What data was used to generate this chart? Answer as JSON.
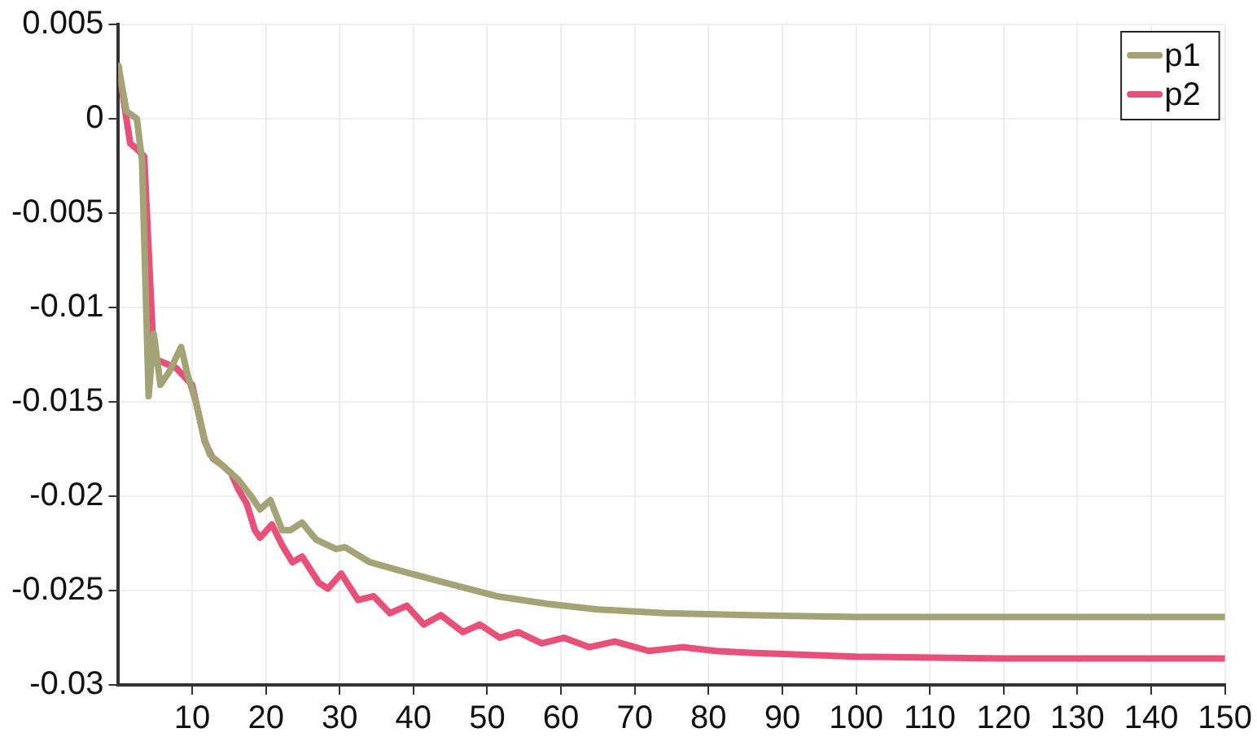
{
  "chart_data": {
    "type": "line",
    "xlim": [
      0,
      150
    ],
    "xticks": [
      10,
      20,
      30,
      40,
      50,
      60,
      70,
      80,
      90,
      100,
      110,
      120,
      130,
      140,
      150
    ],
    "ylim": [
      -0.03,
      0.005
    ],
    "yticks": [
      -0.03,
      -0.025,
      -0.02,
      -0.015,
      -0.01,
      -0.005,
      0,
      0.005
    ],
    "grid": true,
    "legend": "top right",
    "marker": "none",
    "line_style": "solid",
    "series": [
      {
        "name": "p1",
        "color": "#a3a375",
        "x": [
          0,
          1.1,
          2.5,
          3.2,
          4.1,
          4.8,
          5.7,
          6.9,
          8.5,
          9.4,
          10.5,
          11.7,
          12.4,
          14.2,
          16.2,
          18,
          19.2,
          20.6,
          22.2,
          23.3,
          24.9,
          26.8,
          29.5,
          30.7,
          34.1,
          38.7,
          44.4,
          51.3,
          58.1,
          65,
          74.1,
          85.6,
          100,
          120,
          150
        ],
        "values": [
          0.0028,
          0.0004,
          0,
          -0.0022,
          -0.0147,
          -0.0114,
          -0.0141,
          -0.0134,
          -0.0121,
          -0.0136,
          -0.015,
          -0.017,
          -0.0178,
          -0.0184,
          -0.0191,
          -0.02,
          -0.0207,
          -0.0202,
          -0.0218,
          -0.0218,
          -0.0214,
          -0.0223,
          -0.0228,
          -0.0227,
          -0.0235,
          -0.024,
          -0.0246,
          -0.0253,
          -0.0257,
          -0.026,
          -0.0262,
          -0.0263,
          -0.0264,
          -0.0264,
          -0.0264
        ]
      },
      {
        "name": "p2",
        "color": "#e8507a",
        "x": [
          0,
          1.6,
          2.5,
          3.5,
          4.8,
          7.8,
          10,
          11.7,
          12.8,
          14.2,
          15.3,
          16.2,
          17.4,
          18.5,
          19.2,
          20.8,
          22.2,
          23.6,
          24.9,
          27.2,
          28.4,
          30.2,
          32.5,
          34.6,
          36.8,
          39.1,
          41.4,
          43.7,
          46.7,
          49,
          51.7,
          54.2,
          57.4,
          60.4,
          63.8,
          67.3,
          71.9,
          76.4,
          81,
          85.6,
          100,
          120,
          150
        ],
        "values": [
          0.0028,
          -0.0013,
          -0.0016,
          -0.002,
          -0.0127,
          -0.0132,
          -0.0141,
          -0.0171,
          -0.018,
          -0.0184,
          -0.0188,
          -0.0196,
          -0.0204,
          -0.0218,
          -0.0222,
          -0.0215,
          -0.0226,
          -0.0235,
          -0.0232,
          -0.0246,
          -0.0249,
          -0.0241,
          -0.0255,
          -0.0253,
          -0.0262,
          -0.0258,
          -0.0268,
          -0.0263,
          -0.0272,
          -0.0268,
          -0.0275,
          -0.0272,
          -0.0278,
          -0.0275,
          -0.028,
          -0.0277,
          -0.0282,
          -0.028,
          -0.0282,
          -0.0283,
          -0.0285,
          -0.0286,
          -0.0286
        ]
      }
    ]
  }
}
